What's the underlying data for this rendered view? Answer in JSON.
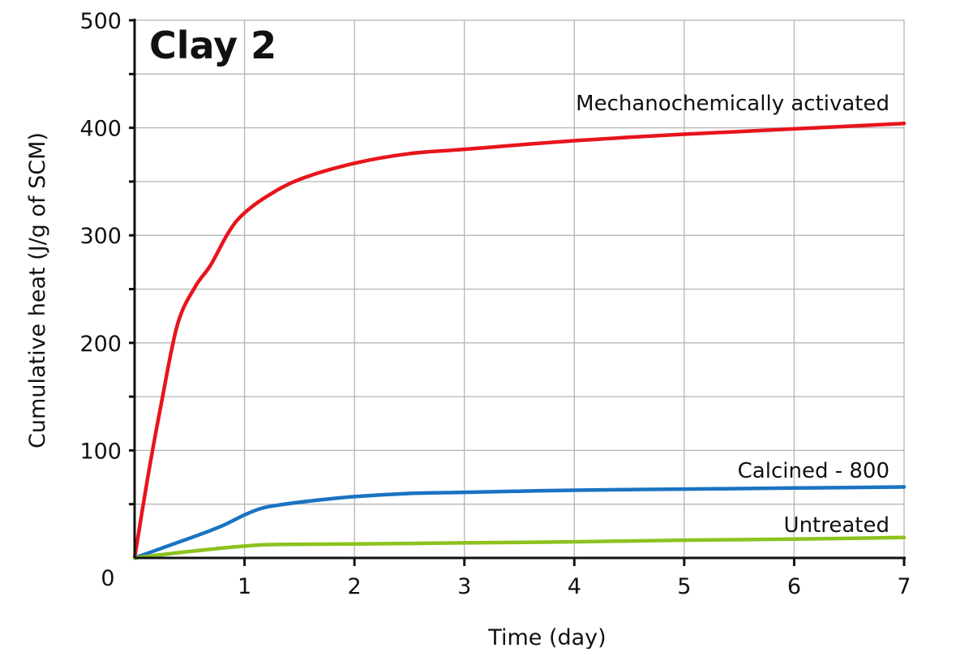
{
  "chart_data": {
    "type": "line",
    "title": "Clay 2",
    "xlabel": "Time (day)",
    "ylabel": "Cumulative heat (J/g of SCM)",
    "xlim": [
      0,
      7
    ],
    "ylim": [
      0,
      500
    ],
    "xticks": [
      "1",
      "2",
      "3",
      "4",
      "5",
      "6",
      "7"
    ],
    "xtick_values": [
      1,
      2,
      3,
      4,
      5,
      6,
      7
    ],
    "yticks": [
      "0",
      "100",
      "200",
      "300",
      "400",
      "500"
    ],
    "ytick_values": [
      0,
      100,
      200,
      300,
      400,
      500
    ],
    "grid": true,
    "series": [
      {
        "name": "Mechanochemically activated",
        "color": "#e8141c",
        "x": [
          0,
          0.12,
          0.24,
          0.39,
          0.55,
          0.69,
          0.85,
          0.98,
          1.2,
          1.5,
          2.0,
          2.5,
          3.0,
          4.0,
          5.0,
          6.0,
          7.0
        ],
        "y": [
          0,
          75,
          142,
          217,
          252,
          272,
          302,
          319,
          336,
          352,
          367,
          376,
          380,
          388,
          394,
          399,
          404
        ]
      },
      {
        "name": "Calcined - 800",
        "color": "#1a73c2",
        "x": [
          0,
          0.3,
          0.6,
          0.8,
          1.0,
          1.15,
          1.3,
          1.6,
          2.0,
          2.5,
          3.0,
          4.0,
          5.0,
          6.0,
          7.0
        ],
        "y": [
          0,
          11,
          22,
          30,
          40,
          46,
          49,
          53,
          57,
          60,
          61,
          63,
          64,
          65,
          66
        ]
      },
      {
        "name": "Untreated",
        "color": "#8cc21e",
        "x": [
          0,
          0.5,
          1.0,
          1.3,
          2.0,
          3.0,
          4.0,
          5.0,
          6.0,
          7.0
        ],
        "y": [
          0,
          6,
          11,
          12.5,
          13,
          14,
          15,
          16.5,
          17.5,
          19
        ]
      }
    ]
  }
}
